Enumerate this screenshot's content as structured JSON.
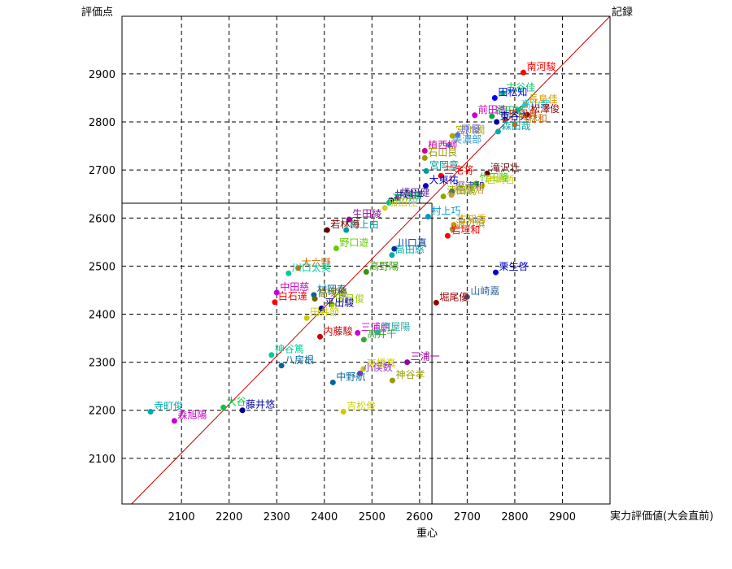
{
  "chart_data": {
    "type": "scatter",
    "ylabel": "評価点",
    "xlabel": "実力評価値(大会直前)",
    "diagonal_label": "記録",
    "centroid_label": "重心",
    "xlim": [
      1975,
      3000
    ],
    "ylim": [
      2005,
      3020
    ],
    "x_ticks": [
      2100,
      2200,
      2300,
      2400,
      2500,
      2600,
      2700,
      2800,
      2900
    ],
    "y_ticks": [
      2100,
      2200,
      2300,
      2400,
      2500,
      2600,
      2700,
      2800,
      2900
    ],
    "grid": true,
    "grid_style": "dashed",
    "diagonal": {
      "from": [
        1995,
        2005
      ],
      "to": [
        3000,
        3020
      ],
      "color": "#cc0000"
    },
    "centroid": {
      "x": 2626,
      "y": 2631
    },
    "points": [
      {
        "x": 2818,
        "y": 2903,
        "label": "南河駿",
        "color": "#ff0000"
      },
      {
        "x": 2775,
        "y": 2860,
        "label": "古谷佳",
        "color": "#00cc66"
      },
      {
        "x": 2758,
        "y": 2850,
        "label": "田松知",
        "color": "#0000ff"
      },
      {
        "x": 2822,
        "y": 2836,
        "label": "長島佳",
        "color": "#cc9900"
      },
      {
        "x": 2806,
        "y": 2825,
        "label": "高山哉",
        "color": "#00ccff"
      },
      {
        "x": 2826,
        "y": 2815,
        "label": "松澤俊",
        "color": "#990000"
      },
      {
        "x": 2716,
        "y": 2814,
        "label": "前田浩",
        "color": "#cc00cc"
      },
      {
        "x": 2752,
        "y": 2812,
        "label": "福田修",
        "color": "#00aa44"
      },
      {
        "x": 2780,
        "y": 2805,
        "label": "広田真",
        "color": "#cc3300"
      },
      {
        "x": 2762,
        "y": 2800,
        "label": "東谷大",
        "color": "#000099"
      },
      {
        "x": 2800,
        "y": 2795,
        "label": "西林和",
        "color": "#cc6600"
      },
      {
        "x": 2765,
        "y": 2780,
        "label": "森田哉",
        "color": "#00aaaa"
      },
      {
        "x": 2669,
        "y": 2771,
        "label": "宮川潤",
        "color": "#aaaa00"
      },
      {
        "x": 2680,
        "y": 2773,
        "label": "原優",
        "color": "#6666cc"
      },
      {
        "x": 2662,
        "y": 2752,
        "label": "美濃部",
        "color": "#3399cc"
      },
      {
        "x": 2611,
        "y": 2740,
        "label": "植西柳",
        "color": "#cc0099"
      },
      {
        "x": 2611,
        "y": 2725,
        "label": "石山良",
        "color": "#999900"
      },
      {
        "x": 2614,
        "y": 2698,
        "label": "宮岡章",
        "color": "#009999"
      },
      {
        "x": 2742,
        "y": 2693,
        "label": "滝沢壮",
        "color": "#660000"
      },
      {
        "x": 2645,
        "y": 2688,
        "label": "三宅将",
        "color": "#ff0000"
      },
      {
        "x": 2719,
        "y": 2672,
        "label": "竹田隆",
        "color": "#33cc00"
      },
      {
        "x": 2613,
        "y": 2667,
        "label": "大東祐",
        "color": "#0000cc"
      },
      {
        "x": 2732,
        "y": 2668,
        "label": "岩崎哲",
        "color": "#cccc00"
      },
      {
        "x": 2668,
        "y": 2655,
        "label": "深津和",
        "color": "#3333aa"
      },
      {
        "x": 2667,
        "y": 2648,
        "label": "稲原浩",
        "color": "#cc9933"
      },
      {
        "x": 2650,
        "y": 2645,
        "label": "清田鏡",
        "color": "#88aa00"
      },
      {
        "x": 2553,
        "y": 2641,
        "label": "横田健",
        "color": "#663399"
      },
      {
        "x": 2540,
        "y": 2637,
        "label": "井越洋",
        "color": "#000066"
      },
      {
        "x": 2536,
        "y": 2632,
        "label": "古川孝",
        "color": "#00bb77"
      },
      {
        "x": 2527,
        "y": 2621,
        "label": "加田佳",
        "color": "#cccc33"
      },
      {
        "x": 2618,
        "y": 2603,
        "label": "村上巧",
        "color": "#0099cc"
      },
      {
        "x": 2672,
        "y": 2586,
        "label": "古知秀",
        "color": "#cc9900"
      },
      {
        "x": 2669,
        "y": 2577,
        "label": "渡辺慎",
        "color": "#999933"
      },
      {
        "x": 2452,
        "y": 2597,
        "label": "生田綾",
        "color": "#990099"
      },
      {
        "x": 2406,
        "y": 2575,
        "label": "若林海",
        "color": "#660000"
      },
      {
        "x": 2446,
        "y": 2575,
        "label": "村上由",
        "color": "#009999"
      },
      {
        "x": 2659,
        "y": 2563,
        "label": "岩垣和",
        "color": "#ff0000"
      },
      {
        "x": 2425,
        "y": 2537,
        "label": "野口遊",
        "color": "#66cc00"
      },
      {
        "x": 2547,
        "y": 2536,
        "label": "川口真",
        "color": "#003399"
      },
      {
        "x": 2542,
        "y": 2523,
        "label": "高田慈",
        "color": "#00aaaa"
      },
      {
        "x": 2760,
        "y": 2487,
        "label": "栗生啓",
        "color": "#0000cc"
      },
      {
        "x": 2345,
        "y": 2496,
        "label": "大六野",
        "color": "#cc6600"
      },
      {
        "x": 2325,
        "y": 2485,
        "label": "川口太英",
        "color": "#00cc99"
      },
      {
        "x": 2488,
        "y": 2488,
        "label": "高野陽",
        "color": "#339900"
      },
      {
        "x": 2300,
        "y": 2445,
        "label": "中田慈",
        "color": "#cc00cc"
      },
      {
        "x": 2378,
        "y": 2440,
        "label": "村岡泰",
        "color": "#006699"
      },
      {
        "x": 2380,
        "y": 2432,
        "label": "高塚優",
        "color": "#666600"
      },
      {
        "x": 2700,
        "y": 2436,
        "label": "山崎嘉",
        "color": "#336699"
      },
      {
        "x": 2635,
        "y": 2424,
        "label": "堀尾優",
        "color": "#990000"
      },
      {
        "x": 2416,
        "y": 2420,
        "label": "田月俊",
        "color": "#99cc00"
      },
      {
        "x": 2296,
        "y": 2425,
        "label": "白石達",
        "color": "#ff0000"
      },
      {
        "x": 2394,
        "y": 2412,
        "label": "平出駿",
        "color": "#000099"
      },
      {
        "x": 2363,
        "y": 2392,
        "label": "田井節",
        "color": "#cccc00"
      },
      {
        "x": 2391,
        "y": 2353,
        "label": "内藤駿",
        "color": "#cc0000"
      },
      {
        "x": 2470,
        "y": 2361,
        "label": "三浦朗",
        "color": "#cc00cc"
      },
      {
        "x": 2512,
        "y": 2362,
        "label": "京屋陽",
        "color": "#33aaaa"
      },
      {
        "x": 2483,
        "y": 2347,
        "label": "高井千",
        "color": "#33aa33"
      },
      {
        "x": 2289,
        "y": 2315,
        "label": "神谷篤",
        "color": "#00cc99"
      },
      {
        "x": 2310,
        "y": 2293,
        "label": "八房根",
        "color": "#006699"
      },
      {
        "x": 2574,
        "y": 2300,
        "label": "三浦一",
        "color": "#990099"
      },
      {
        "x": 2482,
        "y": 2286,
        "label": "高橋真",
        "color": "#cccc00"
      },
      {
        "x": 2475,
        "y": 2277,
        "label": "小俣数",
        "color": "#9933cc"
      },
      {
        "x": 2543,
        "y": 2262,
        "label": "神谷孝",
        "color": "#999900"
      },
      {
        "x": 2418,
        "y": 2258,
        "label": "中野航",
        "color": "#006699"
      },
      {
        "x": 2188,
        "y": 2206,
        "label": "大谷",
        "color": "#00cc33"
      },
      {
        "x": 2228,
        "y": 2200,
        "label": "藤井悠",
        "color": "#000099"
      },
      {
        "x": 2035,
        "y": 2197,
        "label": "寺町俊",
        "color": "#00aaaa"
      },
      {
        "x": 2085,
        "y": 2178,
        "label": "森旭陽",
        "color": "#cc00cc"
      },
      {
        "x": 2440,
        "y": 2197,
        "label": "吉松俊",
        "color": "#cccc00"
      }
    ]
  }
}
